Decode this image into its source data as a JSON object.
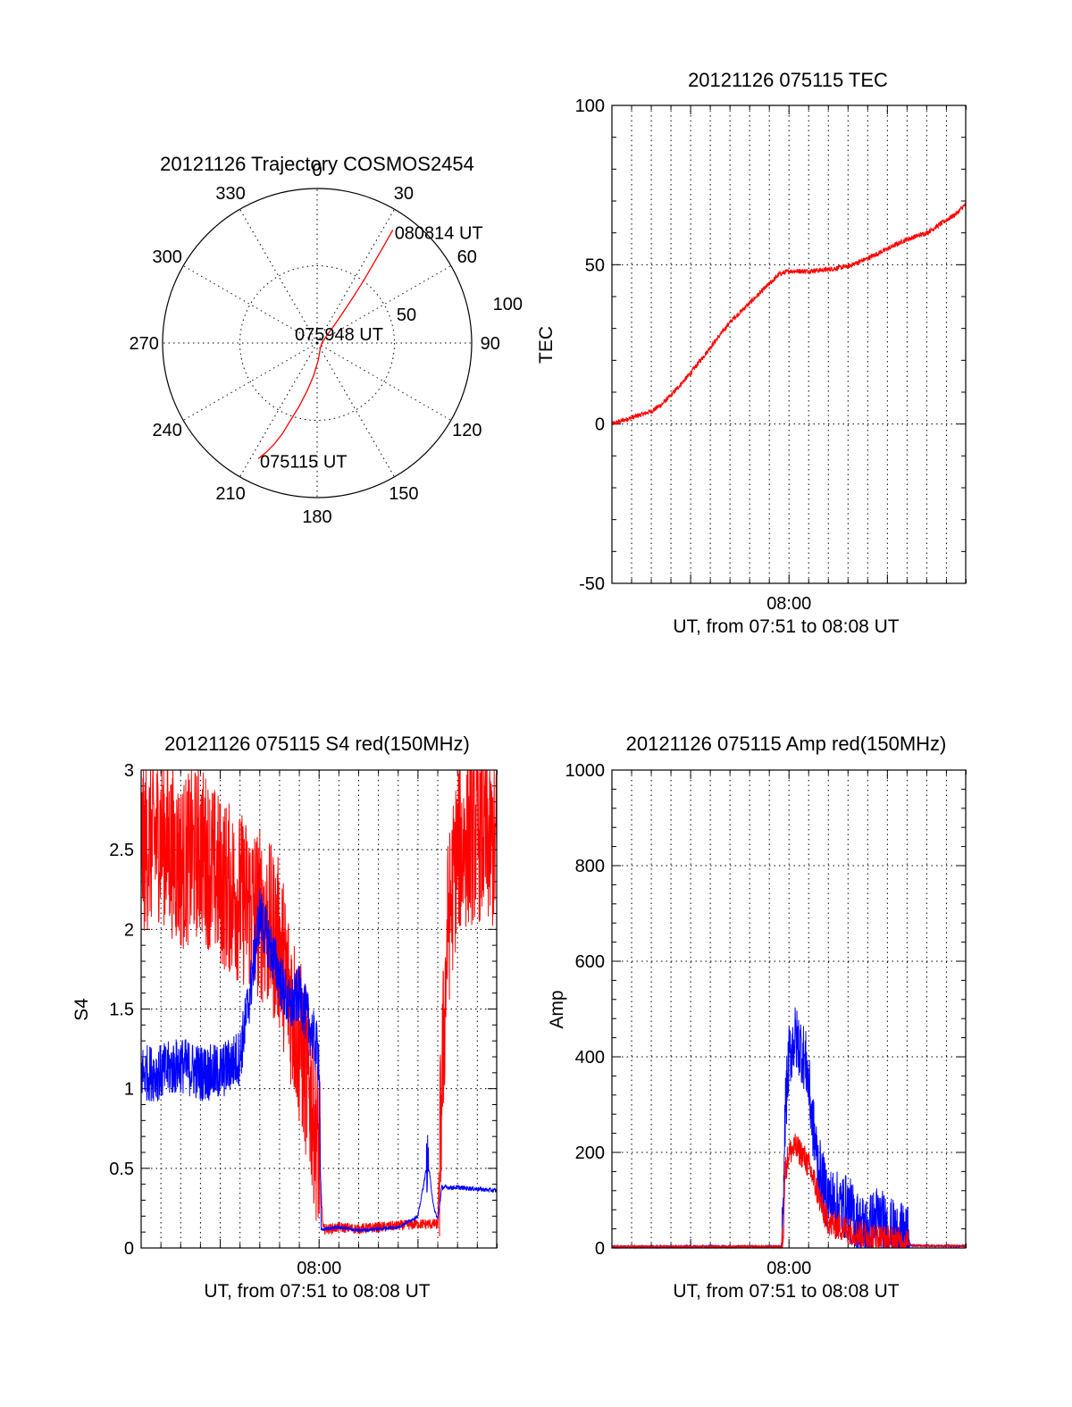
{
  "colors": {
    "red": "#ff0000",
    "blue": "#0000ff",
    "frame": "#000000"
  },
  "chart_data": [
    {
      "type": "polar",
      "title": "20121126 Trajectory COSMOS2454",
      "angle_labels": [
        "0",
        "30",
        "60",
        "90",
        "120",
        "150",
        "180",
        "210",
        "240",
        "270",
        "300",
        "330"
      ],
      "angles": [
        0,
        30,
        60,
        90,
        120,
        150,
        180,
        210,
        240,
        270,
        300,
        330
      ],
      "radial_labels": [
        "50",
        "100"
      ],
      "radial_values": [
        50,
        100
      ],
      "rmax": 100,
      "grid": true,
      "trajectory": {
        "color": "red",
        "points": [
          [
            207,
            84
          ],
          [
            205,
            78
          ],
          [
            203,
            71
          ],
          [
            201,
            63
          ],
          [
            199,
            53
          ],
          [
            196,
            43
          ],
          [
            192,
            32
          ],
          [
            186,
            21
          ],
          [
            176,
            11
          ],
          [
            150,
            4
          ],
          [
            90,
            3
          ],
          [
            52,
            8
          ],
          [
            44,
            16
          ],
          [
            40,
            27
          ],
          [
            38,
            39
          ],
          [
            36.5,
            52
          ],
          [
            35.3,
            64
          ],
          [
            34.5,
            76
          ],
          [
            33.8,
            88
          ]
        ]
      },
      "annotations": [
        {
          "text": "080814 UT",
          "angle": 33.8,
          "r": 88
        },
        {
          "text": "075948 UT",
          "angle": 95,
          "r": 8
        },
        {
          "text": "075115 UT",
          "angle": 207,
          "r": 84
        }
      ]
    },
    {
      "type": "line",
      "title": "20121126 075115 TEC",
      "xlabel": "UT, from 07:51 to 08:08 UT",
      "ylabel": "TEC",
      "x_unit": "minutes after 07:51",
      "xlim": [
        0,
        17.98
      ],
      "ylim": [
        -50,
        100
      ],
      "yticks": [
        "-50",
        "0",
        "50",
        "100"
      ],
      "ytick_values": [
        -50,
        0,
        50,
        100
      ],
      "xtick_labels": [
        "08:00"
      ],
      "xtick_values": [
        9.0
      ],
      "grid": true,
      "series": [
        {
          "color": "red",
          "noise": 0.8,
          "x": [
            0,
            1,
            2,
            2.5,
            3,
            4,
            5,
            6,
            7,
            8,
            8.5,
            9,
            10,
            11,
            12,
            13,
            14,
            15,
            15.5,
            16,
            16.5,
            17,
            17.5,
            17.98
          ],
          "y": [
            0,
            2,
            4,
            6,
            9,
            16,
            24,
            32,
            38,
            44,
            47,
            48,
            48,
            48.5,
            49.5,
            52,
            55,
            58,
            59,
            60,
            62,
            64,
            66,
            69
          ]
        }
      ]
    },
    {
      "type": "line",
      "title": "20121126 075115 S4 red(150MHz)",
      "xlabel": "UT, from 07:51 to 08:08 UT",
      "ylabel": "S4",
      "xlim": [
        0,
        17.98
      ],
      "ylim": [
        0,
        3
      ],
      "yticks": [
        "0",
        "0.5",
        "1",
        "1.5",
        "2",
        "2.5",
        "3"
      ],
      "ytick_values": [
        0,
        0.5,
        1,
        1.5,
        2,
        2.5,
        3
      ],
      "xtick_labels": [
        "08:00"
      ],
      "xtick_values": [
        9.0
      ],
      "grid": true,
      "series": [
        {
          "color": "red",
          "noise": 0.55,
          "x": [
            0,
            1,
            2,
            3,
            4,
            5,
            6,
            7,
            7.5,
            8,
            8.5,
            9,
            9.2,
            9.5,
            10,
            11,
            12,
            13,
            14,
            14.5,
            15,
            15.2,
            15.5,
            16,
            17,
            17.98
          ],
          "y": [
            2.5,
            2.6,
            2.4,
            2.5,
            2.3,
            2.2,
            2.1,
            1.9,
            1.6,
            1.3,
            1.0,
            0.6,
            0.12,
            0.12,
            0.13,
            0.12,
            0.13,
            0.14,
            0.15,
            0.15,
            0.15,
            1.0,
            2.0,
            2.5,
            2.6,
            2.5
          ]
        },
        {
          "color": "blue",
          "noise": 0.18,
          "x": [
            0,
            1,
            2,
            3,
            4,
            5,
            5.5,
            6,
            6.5,
            7,
            7.5,
            8,
            8.5,
            9,
            9.1,
            9.3,
            10,
            11,
            12,
            13,
            14,
            14.5,
            14.8,
            15,
            15.2,
            15.5,
            16,
            17,
            17.98
          ],
          "y": [
            1.1,
            1.1,
            1.15,
            1.1,
            1.1,
            1.2,
            1.6,
            2.1,
            1.9,
            1.7,
            1.5,
            1.6,
            1.4,
            1.2,
            0.11,
            0.12,
            0.13,
            0.11,
            0.12,
            0.13,
            0.2,
            0.55,
            0.25,
            0.18,
            0.38,
            0.38,
            0.38,
            0.37,
            0.36
          ]
        }
      ]
    },
    {
      "type": "line",
      "title": "20121126 075115 Amp red(150MHz)",
      "xlabel": "UT, from 07:51 to 08:08 UT",
      "ylabel": "Amp",
      "xlim": [
        0,
        17.98
      ],
      "ylim": [
        0,
        1000
      ],
      "yticks": [
        "0",
        "200",
        "400",
        "600",
        "800",
        "1000"
      ],
      "ytick_values": [
        0,
        200,
        400,
        600,
        800,
        1000
      ],
      "xtick_labels": [
        "08:00"
      ],
      "xtick_values": [
        9.0
      ],
      "grid": true,
      "series": [
        {
          "color": "blue",
          "noise": 70,
          "x": [
            0,
            8.6,
            8.7,
            8.8,
            9.0,
            9.3,
            9.6,
            9.9,
            10.2,
            10.5,
            10.8,
            11.1,
            11.5,
            12,
            12.5,
            13,
            13.5,
            14,
            14.5,
            15,
            15.2,
            17.98
          ],
          "y": [
            3,
            3,
            40,
            280,
            400,
            440,
            420,
            380,
            260,
            170,
            120,
            100,
            90,
            85,
            50,
            40,
            65,
            40,
            28,
            20,
            5,
            4
          ]
        },
        {
          "color": "red",
          "noise": 30,
          "x": [
            0,
            8.6,
            8.7,
            8.8,
            9.0,
            9.3,
            9.6,
            9.9,
            10.2,
            10.5,
            10.8,
            11.1,
            11.5,
            12,
            12.5,
            13,
            13.5,
            14,
            14.5,
            15,
            15.2,
            17.98
          ],
          "y": [
            3,
            3,
            30,
            160,
            200,
            210,
            200,
            180,
            150,
            110,
            70,
            50,
            45,
            38,
            30,
            25,
            22,
            18,
            15,
            12,
            5,
            4
          ]
        }
      ]
    }
  ]
}
